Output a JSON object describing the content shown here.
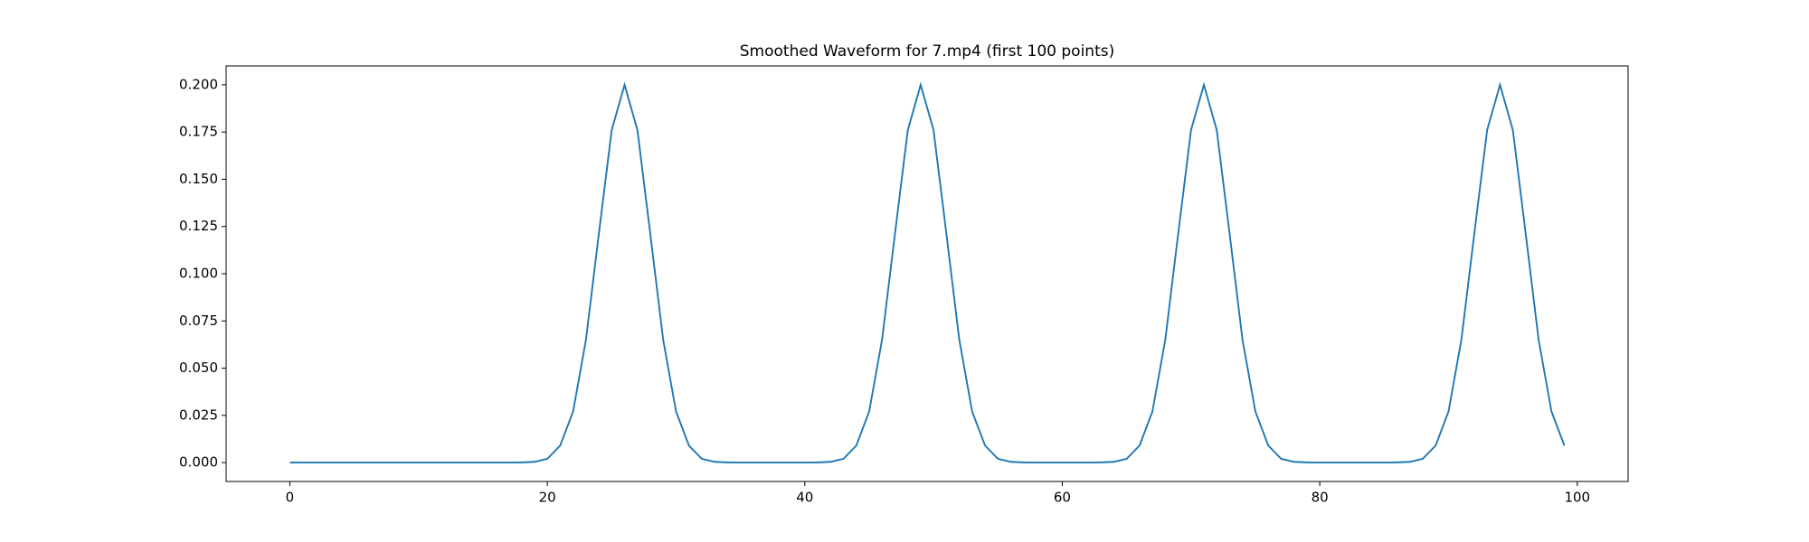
{
  "chart_data": {
    "type": "line",
    "title": "Smoothed Waveform for 7.mp4 (first 100 points)",
    "x": [
      0,
      1,
      2,
      3,
      4,
      5,
      6,
      7,
      8,
      9,
      10,
      11,
      12,
      13,
      14,
      15,
      16,
      17,
      18,
      19,
      20,
      21,
      22,
      23,
      24,
      25,
      26,
      27,
      28,
      29,
      30,
      31,
      32,
      33,
      34,
      35,
      36,
      37,
      38,
      39,
      40,
      41,
      42,
      43,
      44,
      45,
      46,
      47,
      48,
      49,
      50,
      51,
      52,
      53,
      54,
      55,
      56,
      57,
      58,
      59,
      60,
      61,
      62,
      63,
      64,
      65,
      66,
      67,
      68,
      69,
      70,
      71,
      72,
      73,
      74,
      75,
      76,
      77,
      78,
      79,
      80,
      81,
      82,
      83,
      84,
      85,
      86,
      87,
      88,
      89,
      90,
      91,
      92,
      93,
      94,
      95,
      96,
      97,
      98,
      99
    ],
    "series": [
      {
        "color": "#1f77b4",
        "values": [
          0,
          0,
          0,
          0,
          0,
          0,
          0,
          0,
          0,
          0,
          0,
          0,
          0,
          0,
          0,
          0,
          0,
          0,
          0.0001,
          0.0004,
          0.002,
          0.009,
          0.027,
          0.065,
          0.121,
          0.176,
          0.2,
          0.176,
          0.121,
          0.065,
          0.027,
          0.009,
          0.002,
          0.0004,
          0.0001,
          0,
          0,
          0,
          0,
          0,
          0,
          0.0001,
          0.0004,
          0.002,
          0.009,
          0.027,
          0.065,
          0.121,
          0.176,
          0.2,
          0.176,
          0.121,
          0.065,
          0.027,
          0.009,
          0.002,
          0.0004,
          0.0001,
          0,
          0,
          0,
          0,
          0,
          0.0001,
          0.0004,
          0.002,
          0.009,
          0.027,
          0.065,
          0.121,
          0.176,
          0.2,
          0.176,
          0.121,
          0.065,
          0.027,
          0.009,
          0.002,
          0.0004,
          0.0001,
          0,
          0,
          0,
          0,
          0,
          0,
          0.0001,
          0.0004,
          0.002,
          0.009,
          0.027,
          0.065,
          0.121,
          0.176,
          0.2,
          0.176,
          0.121,
          0.065,
          0.027,
          0.009
        ]
      }
    ],
    "xlim": [
      -4.95,
      103.95
    ],
    "xticks": [
      0,
      20,
      40,
      60,
      80,
      100
    ],
    "ylim": [
      -0.01,
      0.21
    ],
    "yticks": [
      {
        "value": 0,
        "label": "0.000"
      },
      {
        "value": 0.025,
        "label": "0.025"
      },
      {
        "value": 0.05,
        "label": "0.050"
      },
      {
        "value": 0.075,
        "label": "0.075"
      },
      {
        "value": 0.1,
        "label": "0.100"
      },
      {
        "value": 0.125,
        "label": "0.125"
      },
      {
        "value": 0.15,
        "label": "0.150"
      },
      {
        "value": 0.175,
        "label": "0.175"
      },
      {
        "value": 0.2,
        "label": "0.200"
      }
    ],
    "grid": false
  }
}
